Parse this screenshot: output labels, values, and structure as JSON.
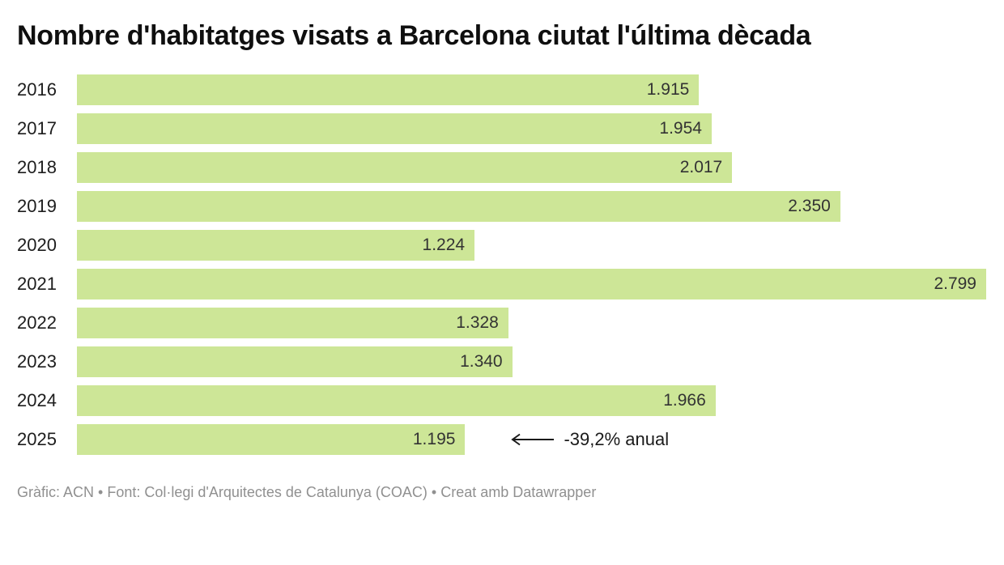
{
  "title": "Nombre d'habitatges visats a Barcelona ciutat l'última dècada",
  "footer": "Gràfic: ACN • Font: Col·legi d'Arquitectes de Catalunya (COAC) • Creat amb Datawrapper",
  "colors": {
    "bar": "#cde697",
    "title": "#0f0f0f",
    "year_label": "#1d1d1d",
    "value_label": "#333333",
    "footer": "#909090"
  },
  "annotation": {
    "text": "-39,2% anual",
    "icon": "long-left-arrow",
    "attached_to_year": "2025"
  },
  "chart_data": {
    "type": "bar",
    "orientation": "horizontal",
    "title": "Nombre d'habitatges visats a Barcelona ciutat l'última dècada",
    "xlabel": "",
    "ylabel": "",
    "xlim": [
      0,
      2799
    ],
    "grid": false,
    "legend": false,
    "max_value": 2799,
    "categories": [
      "2016",
      "2017",
      "2018",
      "2019",
      "2020",
      "2021",
      "2022",
      "2023",
      "2024",
      "2025"
    ],
    "values": [
      1915,
      1954,
      2017,
      2350,
      1224,
      2799,
      1328,
      1340,
      1966,
      1195
    ],
    "rows": [
      {
        "year": "2016",
        "value": 1915,
        "label": "1.915"
      },
      {
        "year": "2017",
        "value": 1954,
        "label": "1.954"
      },
      {
        "year": "2018",
        "value": 2017,
        "label": "2.017"
      },
      {
        "year": "2019",
        "value": 2350,
        "label": "2.350"
      },
      {
        "year": "2020",
        "value": 1224,
        "label": "1.224"
      },
      {
        "year": "2021",
        "value": 2799,
        "label": "2.799"
      },
      {
        "year": "2022",
        "value": 1328,
        "label": "1.328"
      },
      {
        "year": "2023",
        "value": 1340,
        "label": "1.340"
      },
      {
        "year": "2024",
        "value": 1966,
        "label": "1.966"
      },
      {
        "year": "2025",
        "value": 1195,
        "label": "1.195"
      }
    ]
  }
}
